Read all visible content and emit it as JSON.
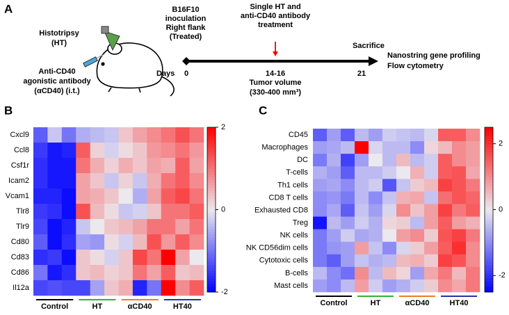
{
  "schematic": {
    "panel_label": "A",
    "treatment_lines": [
      "Histotripsy",
      "(HT)"
    ],
    "antibody_lines": [
      "Anti-CD40",
      "agonistic antibody",
      "(αCD40) (i.t.)"
    ],
    "inoculation_lines": [
      "B16F10",
      "inoculation",
      "Right flank",
      "(Treated)"
    ],
    "treatment_event_lines": [
      "Single HT and",
      "anti-CD40 antibody",
      "treatment"
    ],
    "sacrifice": "Sacrifice",
    "readout_lines": [
      "Nanostring gene profiling",
      "Flow cytometry"
    ],
    "days_label": "Days",
    "days": [
      "0",
      "14-16",
      "21"
    ],
    "tumor_lines": [
      "Tumor volume",
      "(330-400 mm³)"
    ]
  },
  "chart_data": [
    {
      "type": "heatmap",
      "panel_label": "B",
      "rows": [
        "Cxcl9",
        "Ccl8",
        "Csf1r",
        "Icam2",
        "Vcam1",
        "Tlr8",
        "Tlr9",
        "Cd80",
        "Cd83",
        "Cd86",
        "Il12a"
      ],
      "groups": [
        {
          "name": "Control",
          "color": "#000000"
        },
        {
          "name": "HT",
          "color": "#33b233"
        },
        {
          "name": "αCD40",
          "color": "#ee7d22"
        },
        {
          "name": "HT40",
          "color": "#2233aa"
        }
      ],
      "values": [
        [
          -1.2,
          -0.3,
          -1.0,
          -0.5,
          -0.4,
          -0.3,
          0.3,
          0.6,
          0.8,
          1.0,
          1.3,
          1.0
        ],
        [
          -1.5,
          -1.8,
          -1.7,
          1.2,
          0.2,
          -0.2,
          0.1,
          0.3,
          0.7,
          0.8,
          1.0,
          0.7
        ],
        [
          -1.6,
          -1.8,
          -1.8,
          1.0,
          0.5,
          0.2,
          0.5,
          0.3,
          0.6,
          0.5,
          1.2,
          0.6
        ],
        [
          -1.6,
          -1.8,
          -1.8,
          0.6,
          0.3,
          -0.3,
          0.2,
          -0.3,
          0.5,
          1.0,
          1.2,
          0.8
        ],
        [
          -1.7,
          -1.7,
          -1.9,
          0.6,
          0.5,
          0.3,
          0.0,
          -0.5,
          0.6,
          1.2,
          1.4,
          1.0
        ],
        [
          -1.5,
          -1.6,
          -1.9,
          1.3,
          0.4,
          0.1,
          -0.3,
          -0.2,
          0.3,
          1.0,
          1.0,
          1.2
        ],
        [
          -1.4,
          -1.9,
          -1.7,
          -0.3,
          0.0,
          0.3,
          0.4,
          0.6,
          1.0,
          1.0,
          0.6,
          1.0
        ],
        [
          -1.2,
          -1.9,
          -1.6,
          -0.6,
          -0.7,
          0.1,
          -0.2,
          0.4,
          1.3,
          0.7,
          1.2,
          0.8
        ],
        [
          -1.6,
          -1.5,
          -1.9,
          0.3,
          0.1,
          -0.2,
          0.3,
          1.4,
          1.0,
          2.0,
          0.6,
          0.0
        ],
        [
          -1.0,
          -1.8,
          -1.6,
          0.3,
          0.4,
          0.2,
          0.3,
          1.0,
          0.6,
          1.2,
          0.3,
          0.4
        ],
        [
          -1.4,
          -1.3,
          -1.4,
          -1.4,
          -0.6,
          0.3,
          0.5,
          -1.7,
          -1.0,
          2.0,
          0.8,
          1.2
        ]
      ],
      "zlim": [
        -2,
        2
      ],
      "zticks": [
        2,
        0,
        -2
      ],
      "colormap": [
        "#0000ff",
        "#ebe8ee",
        "#ff0000"
      ]
    },
    {
      "type": "heatmap",
      "panel_label": "C",
      "rows": [
        "CD45",
        "Macrophages",
        "DC",
        "T-cells",
        "Th1 cells",
        "CD8 T cells",
        "Exhausted CD8",
        "Treg",
        "NK cells",
        "NK CD56dim cells",
        "Cytotoxic cells",
        "B-cells",
        "Mast cells"
      ],
      "groups": [
        {
          "name": "Control",
          "color": "#000000"
        },
        {
          "name": "HT",
          "color": "#33b233"
        },
        {
          "name": "αCD40",
          "color": "#ee7d22"
        },
        {
          "name": "HT40",
          "color": "#2233aa"
        }
      ],
      "values": [
        [
          -1.5,
          -0.8,
          -1.5,
          -0.5,
          -0.8,
          -0.3,
          -0.4,
          -0.5,
          -0.2,
          1.5,
          1.5,
          1.0
        ],
        [
          -0.8,
          -0.7,
          -0.5,
          2.5,
          -0.2,
          -0.5,
          -0.5,
          -1.0,
          0.2,
          0.5,
          1.0,
          0.8
        ],
        [
          -1.2,
          -0.6,
          -1.8,
          -0.8,
          0.0,
          -0.5,
          0.5,
          -0.5,
          -0.3,
          1.5,
          1.0,
          0.8
        ],
        [
          -0.6,
          -0.8,
          -1.5,
          -0.5,
          -0.5,
          -0.3,
          0.0,
          0.6,
          -0.3,
          1.5,
          1.6,
          0.7
        ],
        [
          -0.8,
          -0.7,
          -1.0,
          -0.5,
          -0.3,
          -1.6,
          -0.4,
          0.3,
          0.5,
          1.8,
          1.6,
          1.2
        ],
        [
          -1.0,
          -0.9,
          -1.2,
          -0.5,
          -1.0,
          -0.4,
          0.6,
          0.7,
          -0.4,
          1.3,
          1.6,
          1.4
        ],
        [
          -1.0,
          -0.7,
          -1.5,
          -0.4,
          -0.8,
          -0.2,
          1.0,
          0.4,
          0.8,
          1.8,
          1.2,
          1.5
        ],
        [
          -2.3,
          -0.5,
          -0.8,
          -0.3,
          -0.6,
          0.2,
          0.3,
          -0.5,
          0.8,
          1.5,
          0.8,
          0.6
        ],
        [
          -1.2,
          -0.8,
          -0.3,
          -0.7,
          -0.6,
          0.0,
          0.8,
          1.0,
          0.3,
          1.6,
          1.8,
          1.2
        ],
        [
          -1.2,
          -0.9,
          -0.8,
          0.8,
          -0.4,
          -1.0,
          -0.2,
          0.3,
          0.8,
          1.5,
          2.0,
          1.0
        ],
        [
          -1.2,
          -1.5,
          -0.8,
          -0.4,
          -0.6,
          -0.5,
          0.5,
          0.6,
          0.3,
          1.8,
          1.6,
          1.0
        ],
        [
          -0.5,
          -1.0,
          -1.3,
          1.0,
          -0.5,
          0.5,
          0.2,
          -0.8,
          0.7,
          1.2,
          0.5,
          1.2
        ],
        [
          -0.8,
          -1.0,
          -0.5,
          0.8,
          -0.3,
          -0.8,
          -0.6,
          -0.3,
          0.3,
          1.0,
          0.7,
          1.2
        ]
      ],
      "zlim": [
        -2.5,
        2.5
      ],
      "zticks": [
        2,
        0,
        -2
      ],
      "colormap": [
        "#0000ff",
        "#ebe8ee",
        "#ff0000"
      ]
    }
  ]
}
